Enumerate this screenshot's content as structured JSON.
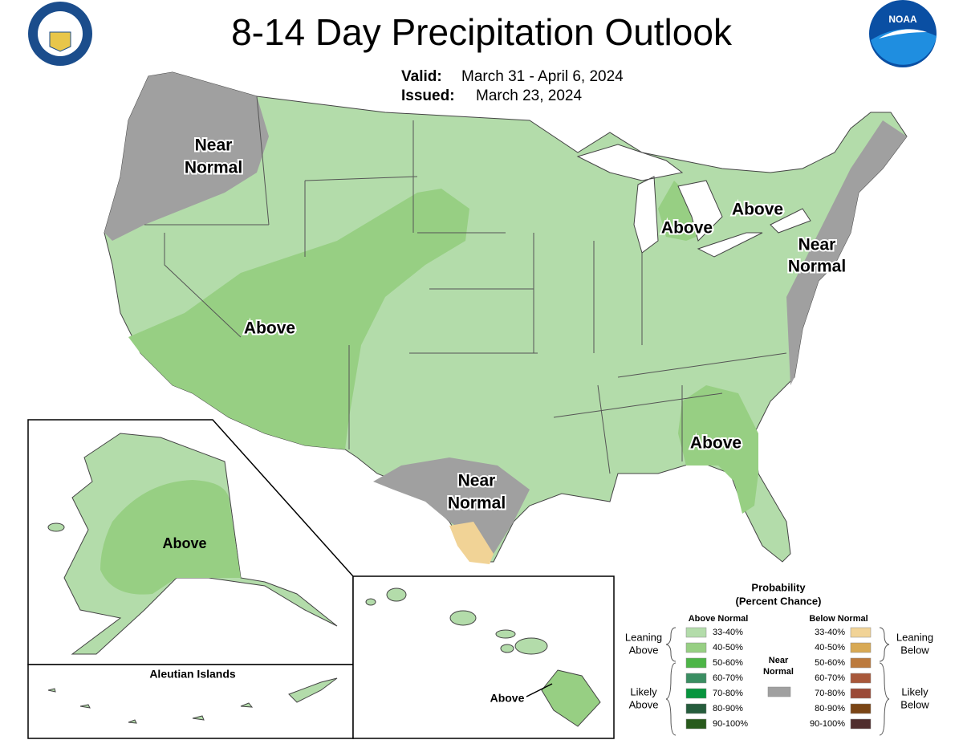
{
  "header": {
    "title": "8-14 Day Precipitation Outlook",
    "valid_label": "Valid:",
    "valid_date": "March 31 - April 6, 2024",
    "issued_label": "Issued:",
    "issued_date": "March 23, 2024",
    "logo": "NOAA"
  },
  "map": {
    "labels": [
      [
        "Near",
        "Normal"
      ],
      [
        "Above"
      ],
      [
        "Above"
      ],
      [
        "Above"
      ],
      [
        "Near",
        "Normal"
      ],
      [
        "Near",
        "Normal"
      ],
      [
        "Above"
      ]
    ]
  },
  "alaska": {
    "label": "Above"
  },
  "aleutians": {
    "title": "Aleutian Islands"
  },
  "hawaii": {
    "label": "Above"
  },
  "legend": {
    "title": [
      "Probability",
      "(Percent Chance)"
    ],
    "above": {
      "heading": "Above Normal",
      "items": [
        {
          "label": "33-40%",
          "color": "#b3dcaa"
        },
        {
          "label": "40-50%",
          "color": "#97cf83"
        },
        {
          "label": "50-60%",
          "color": "#4db547"
        },
        {
          "label": "60-70%",
          "color": "#3a8e62"
        },
        {
          "label": "70-80%",
          "color": "#07953e"
        },
        {
          "label": "80-90%",
          "color": "#255c3c"
        },
        {
          "label": "90-100%",
          "color": "#285a1c"
        }
      ]
    },
    "below": {
      "heading": "Below Normal",
      "items": [
        {
          "label": "33-40%",
          "color": "#f1d396"
        },
        {
          "label": "40-50%",
          "color": "#d8a954"
        },
        {
          "label": "50-60%",
          "color": "#bc7a3d"
        },
        {
          "label": "60-70%",
          "color": "#a8583a"
        },
        {
          "label": "70-80%",
          "color": "#9b4a37"
        },
        {
          "label": "80-90%",
          "color": "#7a4515"
        },
        {
          "label": "90-100%",
          "color": "#4f2d2d"
        }
      ]
    },
    "near": {
      "label": [
        "Near",
        "Normal"
      ],
      "color": "#a0a0a0"
    },
    "groups": {
      "leaning_above": [
        "Leaning",
        "Above"
      ],
      "likely_above": [
        "Likely",
        "Above"
      ],
      "leaning_below": [
        "Leaning",
        "Below"
      ],
      "likely_below": [
        "Likely",
        "Below"
      ]
    }
  }
}
